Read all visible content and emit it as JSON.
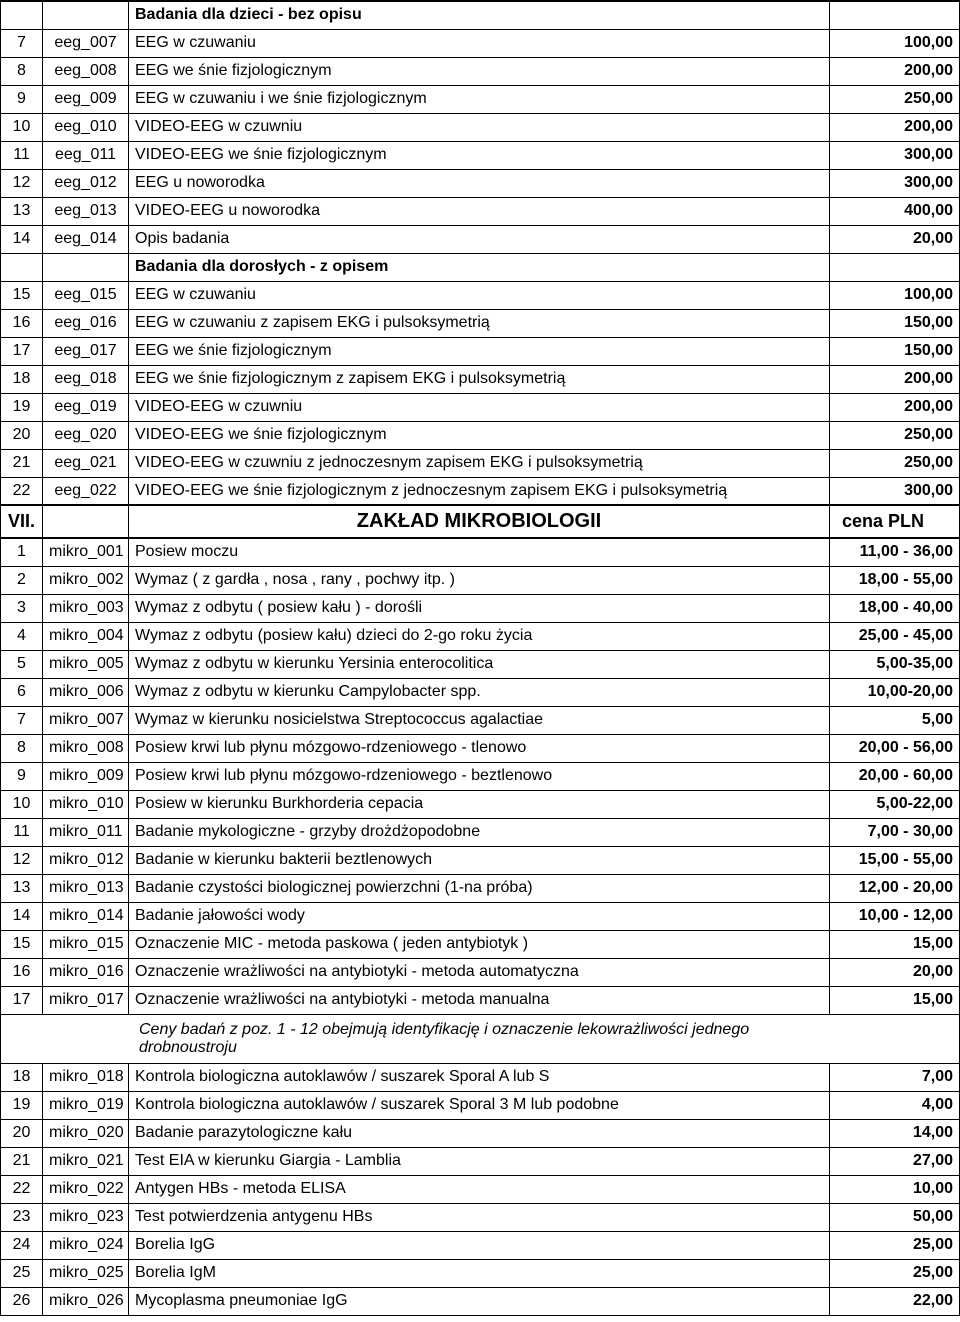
{
  "subheaders": {
    "sh1": "Badania dla dzieci - bez opisu",
    "sh2": "Badania dla dorosłych - z opisem"
  },
  "section": {
    "num": "VII.",
    "title": "ZAKŁAD   MIKROBIOLOGII",
    "price_label": "cena PLN"
  },
  "note": "Ceny badań z poz. 1 - 12 obejmują identyfikację i oznaczenie lekowrażliwości jednego drobnoustroju",
  "rows": [
    {
      "type": "sub",
      "key": "sh1"
    },
    {
      "type": "d",
      "n": "7",
      "c": "eeg_007",
      "d": "EEG w czuwaniu",
      "p": "100,00"
    },
    {
      "type": "d",
      "n": "8",
      "c": "eeg_008",
      "d": "EEG we śnie fizjologicznym",
      "p": "200,00"
    },
    {
      "type": "d",
      "n": "9",
      "c": "eeg_009",
      "d": "EEG w czuwaniu i we śnie fizjologicznym",
      "p": "250,00"
    },
    {
      "type": "d",
      "n": "10",
      "c": "eeg_010",
      "d": "VIDEO-EEG w czuwniu",
      "p": "200,00"
    },
    {
      "type": "d",
      "n": "11",
      "c": "eeg_011",
      "d": "VIDEO-EEG we śnie fizjologicznym",
      "p": "300,00"
    },
    {
      "type": "d",
      "n": "12",
      "c": "eeg_012",
      "d": "EEG u noworodka",
      "p": "300,00"
    },
    {
      "type": "d",
      "n": "13",
      "c": "eeg_013",
      "d": "VIDEO-EEG u noworodka",
      "p": "400,00"
    },
    {
      "type": "d",
      "n": "14",
      "c": "eeg_014",
      "d": "Opis badania",
      "p": "20,00"
    },
    {
      "type": "sub",
      "key": "sh2"
    },
    {
      "type": "d",
      "n": "15",
      "c": "eeg_015",
      "d": "EEG w czuwaniu",
      "p": "100,00"
    },
    {
      "type": "d",
      "n": "16",
      "c": "eeg_016",
      "d": "EEG w czuwaniu z zapisem EKG i pulsoksymetrią",
      "p": "150,00"
    },
    {
      "type": "d",
      "n": "17",
      "c": "eeg_017",
      "d": "EEG we śnie fizjologicznym",
      "p": "150,00"
    },
    {
      "type": "d",
      "n": "18",
      "c": "eeg_018",
      "d": "EEG we śnie fizjologicznym z zapisem EKG i pulsoksymetrią",
      "p": "200,00"
    },
    {
      "type": "d",
      "n": "19",
      "c": "eeg_019",
      "d": "VIDEO-EEG w czuwniu",
      "p": "200,00"
    },
    {
      "type": "d",
      "n": "20",
      "c": "eeg_020",
      "d": "VIDEO-EEG we śnie fizjologicznym",
      "p": "250,00"
    },
    {
      "type": "d",
      "n": "21",
      "c": "eeg_021",
      "d": "VIDEO-EEG w czuwniu z jednoczesnym zapisem EKG i pulsoksymetrią",
      "p": "250,00"
    },
    {
      "type": "d",
      "n": "22",
      "c": "eeg_022",
      "d": "VIDEO-EEG we śnie fizjologicznym z jednoczesnym zapisem EKG i pulsoksymetrią",
      "p": "300,00"
    },
    {
      "type": "section"
    },
    {
      "type": "d",
      "n": "1",
      "c": "mikro_001",
      "d": "Posiew moczu",
      "p": "11,00 - 36,00"
    },
    {
      "type": "d",
      "n": "2",
      "c": "mikro_002",
      "d": "Wymaz ( z gardła , nosa , rany , pochwy itp. )",
      "p": "18,00 - 55,00"
    },
    {
      "type": "d",
      "n": "3",
      "c": "mikro_003",
      "d": "Wymaz z odbytu ( posiew kału ) - dorośli",
      "p": "18,00 - 40,00"
    },
    {
      "type": "d",
      "n": "4",
      "c": "mikro_004",
      "d": "Wymaz z odbytu (posiew kału) dzieci do 2-go roku życia",
      "p": "25,00 - 45,00"
    },
    {
      "type": "d",
      "n": "5",
      "c": "mikro_005",
      "d": "Wymaz z odbytu w kierunku Yersinia enterocolitica",
      "p": "5,00-35,00"
    },
    {
      "type": "d",
      "n": "6",
      "c": "mikro_006",
      "d": "Wymaz z odbytu w kierunku Campylobacter spp.",
      "p": "10,00-20,00"
    },
    {
      "type": "d",
      "n": "7",
      "c": "mikro_007",
      "d": "Wymaz w kierunku nosicielstwa Streptococcus agalactiae",
      "p": "5,00"
    },
    {
      "type": "d",
      "n": "8",
      "c": "mikro_008",
      "d": "Posiew krwi lub płynu mózgowo-rdzeniowego - tlenowo",
      "p": "20,00 - 56,00"
    },
    {
      "type": "d",
      "n": "9",
      "c": "mikro_009",
      "d": "Posiew krwi lub płynu mózgowo-rdzeniowego - beztlenowo",
      "p": "20,00 - 60,00"
    },
    {
      "type": "d",
      "n": "10",
      "c": "mikro_010",
      "d": "Posiew w kierunku Burkhorderia cepacia",
      "p": "5,00-22,00"
    },
    {
      "type": "d",
      "n": "11",
      "c": "mikro_011",
      "d": "Badanie mykologiczne - grzyby drożdżopodobne",
      "p": "7,00 - 30,00"
    },
    {
      "type": "d",
      "n": "12",
      "c": "mikro_012",
      "d": "Badanie w kierunku bakterii beztlenowych",
      "p": "15,00 - 55,00"
    },
    {
      "type": "d",
      "n": "13",
      "c": "mikro_013",
      "d": "Badanie czystości biologicznej powierzchni (1-na próba)",
      "p": "12,00 - 20,00"
    },
    {
      "type": "d",
      "n": "14",
      "c": "mikro_014",
      "d": "Badanie jałowości wody",
      "p": "10,00 - 12,00"
    },
    {
      "type": "d",
      "n": "15",
      "c": "mikro_015",
      "d": "Oznaczenie MIC - metoda paskowa ( jeden antybiotyk )",
      "p": "15,00"
    },
    {
      "type": "d",
      "n": "16",
      "c": "mikro_016",
      "d": "Oznaczenie wrażliwości na antybiotyki - metoda automatyczna",
      "p": "20,00"
    },
    {
      "type": "d",
      "n": "17",
      "c": "mikro_017",
      "d": "Oznaczenie wrażliwości na antybiotyki - metoda manualna",
      "p": "15,00"
    },
    {
      "type": "note"
    },
    {
      "type": "d",
      "n": "18",
      "c": "mikro_018",
      "d": "Kontrola biologiczna autoklawów / suszarek Sporal A lub S",
      "p": "7,00"
    },
    {
      "type": "d",
      "n": "19",
      "c": "mikro_019",
      "d": "Kontrola biologiczna autoklawów / suszarek Sporal 3 M lub podobne",
      "p": "4,00"
    },
    {
      "type": "d",
      "n": "20",
      "c": "mikro_020",
      "d": "Badanie parazytologiczne kału",
      "p": "14,00"
    },
    {
      "type": "d",
      "n": "21",
      "c": "mikro_021",
      "d": "Test EIA w kierunku Giargia - Lamblia",
      "p": "27,00"
    },
    {
      "type": "d",
      "n": "22",
      "c": "mikro_022",
      "d": "Antygen HBs - metoda ELISA",
      "p": "10,00"
    },
    {
      "type": "d",
      "n": "23",
      "c": "mikro_023",
      "d": "Test potwierdzenia antygenu HBs",
      "p": "50,00"
    },
    {
      "type": "d",
      "n": "24",
      "c": "mikro_024",
      "d": "Borelia IgG",
      "p": "25,00"
    },
    {
      "type": "d",
      "n": "25",
      "c": "mikro_025",
      "d": "Borelia IgM",
      "p": "25,00"
    },
    {
      "type": "d",
      "n": "26",
      "c": "mikro_026",
      "d": "Mycoplasma pneumoniae IgG",
      "p": "22,00"
    }
  ]
}
